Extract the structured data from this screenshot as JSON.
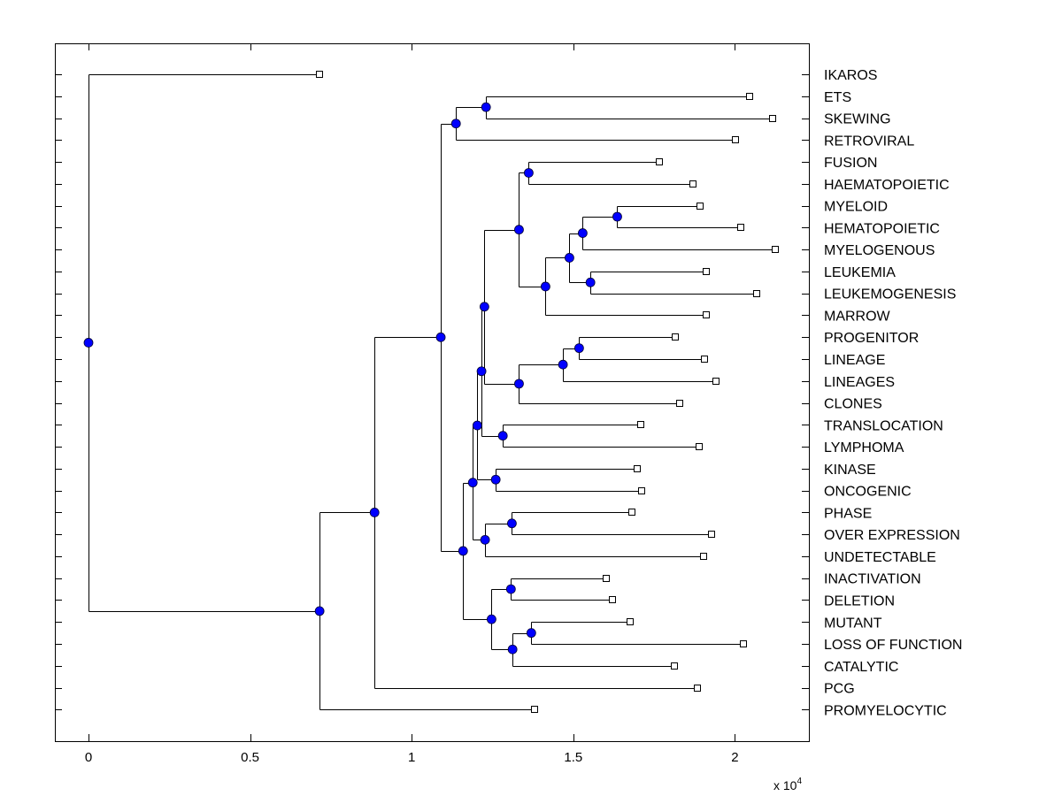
{
  "chart_data": {
    "type": "dendrogram",
    "title": "",
    "xlabel": "",
    "ylabel": "",
    "x_multiplier_label": "x 10",
    "x_multiplier_exponent": "4",
    "xlim": [
      -0.1,
      2.23
    ],
    "xticks": [
      0,
      0.5,
      1,
      1.5,
      2
    ],
    "xtick_labels": [
      "0",
      "0.5",
      "1",
      "1.5",
      "2"
    ],
    "grid": false,
    "colors": {
      "internal_node": "#0000ff",
      "leaf_node": "#ffffff",
      "line": "#000000"
    },
    "leaves": [
      {
        "label": "IKAROS",
        "x": 0.715
      },
      {
        "label": "ETS",
        "x": 2.046
      },
      {
        "label": "SKEWING",
        "x": 2.118
      },
      {
        "label": "RETROVIRAL",
        "x": 2.003
      },
      {
        "label": "FUSION",
        "x": 1.767
      },
      {
        "label": "HAEMATOPOIETIC",
        "x": 1.871
      },
      {
        "label": "MYELOID",
        "x": 1.893
      },
      {
        "label": "HEMATOPOIETIC",
        "x": 2.019
      },
      {
        "label": "MYELOGENOUS",
        "x": 2.126
      },
      {
        "label": "LEUKEMIA",
        "x": 1.91
      },
      {
        "label": "LEUKEMOGENESIS",
        "x": 2.068
      },
      {
        "label": "MARROW",
        "x": 1.912
      },
      {
        "label": "PROGENITOR",
        "x": 1.816
      },
      {
        "label": "LINEAGE",
        "x": 1.907
      },
      {
        "label": "LINEAGES",
        "x": 1.942
      },
      {
        "label": "CLONES",
        "x": 1.83
      },
      {
        "label": "TRANSLOCATION",
        "x": 1.71
      },
      {
        "label": "LYMPHOMA",
        "x": 1.89
      },
      {
        "label": "KINASE",
        "x": 1.699
      },
      {
        "label": "ONCOGENIC",
        "x": 1.712
      },
      {
        "label": "PHASE",
        "x": 1.682
      },
      {
        "label": "OVER EXPRESSION",
        "x": 1.929
      },
      {
        "label": "UNDETECTABLE",
        "x": 1.904
      },
      {
        "label": "INACTIVATION",
        "x": 1.603
      },
      {
        "label": "DELETION",
        "x": 1.622
      },
      {
        "label": "MUTANT",
        "x": 1.677
      },
      {
        "label": "LOSS OF FUNCTION",
        "x": 2.027
      },
      {
        "label": "CATALYTIC",
        "x": 1.814
      },
      {
        "label": "PCG",
        "x": 1.885
      },
      {
        "label": "PROMYELOCYTIC",
        "x": 1.381
      }
    ],
    "internal_nodes": [
      {
        "id": "n_root",
        "x": 0.0,
        "children": [
          "L0",
          "n_b"
        ]
      },
      {
        "id": "n_b",
        "x": 0.715,
        "children": [
          "n_c",
          "L29"
        ]
      },
      {
        "id": "n_c",
        "x": 0.885,
        "children": [
          "n_d",
          "L28"
        ]
      },
      {
        "id": "n_d",
        "x": 1.09,
        "children": [
          "n_e",
          "n_f"
        ]
      },
      {
        "id": "n_e",
        "x": 1.137,
        "children": [
          "n_ets",
          "L3"
        ]
      },
      {
        "id": "n_ets",
        "x": 1.23,
        "children": [
          "L1",
          "L2"
        ]
      },
      {
        "id": "n_f",
        "x": 1.159,
        "children": [
          "n_g",
          "n_mut"
        ]
      },
      {
        "id": "n_g",
        "x": 1.189,
        "children": [
          "n_i",
          "n_phase"
        ]
      },
      {
        "id": "n_i",
        "x": 1.203,
        "children": [
          "n_j",
          "n_kin"
        ]
      },
      {
        "id": "n_j",
        "x": 1.216,
        "children": [
          "n_k",
          "n_tr"
        ]
      },
      {
        "id": "n_k",
        "x": 1.225,
        "children": [
          "n_fus",
          "n_prog"
        ]
      },
      {
        "id": "n_fus",
        "x": 1.332,
        "children": [
          "n_fusion",
          "n_my"
        ]
      },
      {
        "id": "n_fusion",
        "x": 1.362,
        "children": [
          "L4",
          "L5"
        ]
      },
      {
        "id": "n_my",
        "x": 1.414,
        "children": [
          "n_my2",
          "L11"
        ]
      },
      {
        "id": "n_my2",
        "x": 1.488,
        "children": [
          "n_my3",
          "n_leuk"
        ]
      },
      {
        "id": "n_my3",
        "x": 1.529,
        "children": [
          "n_my4",
          "L8"
        ]
      },
      {
        "id": "n_my4",
        "x": 1.636,
        "children": [
          "L6",
          "L7"
        ]
      },
      {
        "id": "n_leuk",
        "x": 1.553,
        "children": [
          "L9",
          "L10"
        ]
      },
      {
        "id": "n_prog",
        "x": 1.332,
        "children": [
          "n_prog2",
          "L15"
        ]
      },
      {
        "id": "n_prog2",
        "x": 1.468,
        "children": [
          "n_prog3",
          "L14"
        ]
      },
      {
        "id": "n_prog3",
        "x": 1.518,
        "children": [
          "L12",
          "L13"
        ]
      },
      {
        "id": "n_tr",
        "x": 1.282,
        "children": [
          "L16",
          "L17"
        ]
      },
      {
        "id": "n_kin",
        "x": 1.26,
        "children": [
          "L18",
          "L19"
        ]
      },
      {
        "id": "n_phase",
        "x": 1.227,
        "children": [
          "n_ph2",
          "L22"
        ]
      },
      {
        "id": "n_ph2",
        "x": 1.31,
        "children": [
          "L20",
          "L21"
        ]
      },
      {
        "id": "n_mut",
        "x": 1.247,
        "children": [
          "n_inact",
          "n_loss"
        ]
      },
      {
        "id": "n_inact",
        "x": 1.307,
        "children": [
          "L23",
          "L24"
        ]
      },
      {
        "id": "n_loss",
        "x": 1.312,
        "children": [
          "n_loss2",
          "L27"
        ]
      },
      {
        "id": "n_loss2",
        "x": 1.37,
        "children": [
          "L25",
          "L26"
        ]
      }
    ]
  }
}
